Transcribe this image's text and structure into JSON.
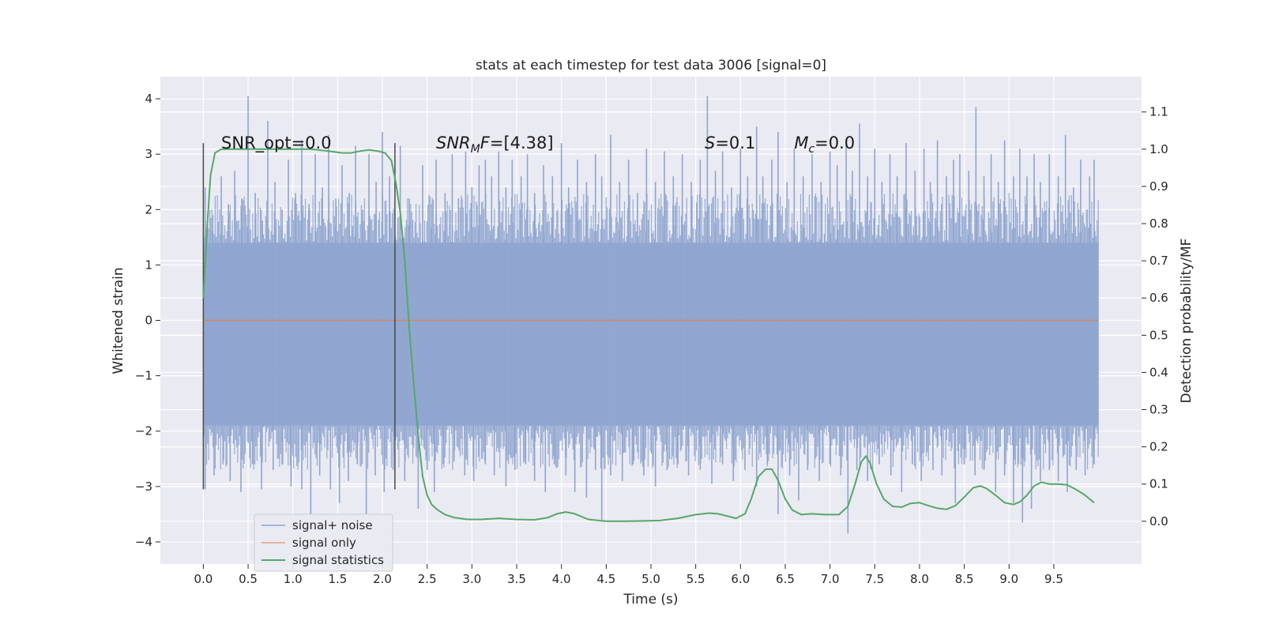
{
  "chart_data": {
    "type": "line",
    "title": "stats at each timestep for test data 3006 [signal=0]",
    "xlabel": "Time (s)",
    "ylabel": "Whitened strain",
    "y2label": "Detection probability/MF",
    "xlim": [
      -0.48,
      10.48
    ],
    "ylim": [
      -4.4,
      4.4
    ],
    "y2lim": [
      -0.115,
      1.195
    ],
    "xticks": [
      0.0,
      0.5,
      1.0,
      1.5,
      2.0,
      2.5,
      3.0,
      3.5,
      4.0,
      4.5,
      5.0,
      5.5,
      6.0,
      6.5,
      7.0,
      7.5,
      8.0,
      8.5,
      9.0,
      9.5
    ],
    "xtick_labels": [
      "0.0",
      "0.5",
      "1.0",
      "1.5",
      "2.0",
      "2.5",
      "3.0",
      "3.5",
      "4.0",
      "4.5",
      "5.0",
      "5.5",
      "6.0",
      "6.5",
      "7.0",
      "7.5",
      "8.0",
      "8.5",
      "9.0",
      "9.5"
    ],
    "yticks": [
      -4,
      -3,
      -2,
      -1,
      0,
      1,
      2,
      3,
      4
    ],
    "ytick_labels": [
      "−4",
      "−3",
      "−2",
      "−1",
      "0",
      "1",
      "2",
      "3",
      "4"
    ],
    "y2ticks": [
      0.0,
      0.1,
      0.2,
      0.3,
      0.4,
      0.5,
      0.6,
      0.7,
      0.8,
      0.9,
      1.0,
      1.1
    ],
    "y2tick_labels": [
      "0.0",
      "0.1",
      "0.2",
      "0.3",
      "0.4",
      "0.5",
      "0.6",
      "0.7",
      "0.8",
      "0.9",
      "1.0",
      "1.1"
    ],
    "grid": true,
    "legend": {
      "placement": "lower-left",
      "entries": [
        "signal+ noise",
        "signal only",
        "signal statistics"
      ]
    },
    "annotations": [
      {
        "text": "SNR_opt=0.0",
        "x": 0.2,
        "y": 3.2
      },
      {
        "html_parts": [
          "SNR",
          "M",
          "F=[4.38]"
        ],
        "x": 2.6,
        "y": 3.2
      },
      {
        "html_parts": [
          "S",
          "=0.1"
        ],
        "x": 5.6,
        "y": 3.2
      },
      {
        "html_parts": [
          "M",
          "c",
          "=0.0"
        ],
        "x": 6.6,
        "y": 3.2
      }
    ],
    "vlines": [
      {
        "x": 0.0,
        "ymin": -3.05,
        "ymax": 3.2
      },
      {
        "x": 2.14,
        "ymin": -3.05,
        "ymax": 3.2
      }
    ],
    "series": [
      {
        "name": "signal+ noise",
        "color": "#8fa5cf",
        "x_range": [
          0.0,
          10.0
        ],
        "envelope": {
          "core_low": -1.9,
          "core_high": 1.4
        },
        "spikes_up": [
          [
            0.02,
            2.4
          ],
          [
            0.1,
            1.6
          ],
          [
            0.2,
            2.6
          ],
          [
            0.28,
            2.1
          ],
          [
            0.35,
            2.7
          ],
          [
            0.43,
            2.2
          ],
          [
            0.5,
            4.05
          ],
          [
            0.58,
            2.3
          ],
          [
            0.66,
            1.8
          ],
          [
            0.72,
            3.6
          ],
          [
            0.8,
            2.5
          ],
          [
            0.88,
            2.0
          ],
          [
            0.95,
            2.9
          ],
          [
            1.03,
            2.3
          ],
          [
            1.1,
            3.25
          ],
          [
            1.18,
            2.1
          ],
          [
            1.25,
            3.0
          ],
          [
            1.33,
            2.4
          ],
          [
            1.4,
            3.35
          ],
          [
            1.48,
            2.2
          ],
          [
            1.55,
            2.8
          ],
          [
            1.63,
            2.3
          ],
          [
            1.7,
            3.15
          ],
          [
            1.78,
            2.0
          ],
          [
            1.85,
            3.0
          ],
          [
            1.93,
            2.5
          ],
          [
            2.0,
            3.4
          ],
          [
            2.08,
            2.6
          ],
          [
            2.2,
            3.15
          ],
          [
            2.3,
            2.2
          ],
          [
            2.45,
            2.8
          ],
          [
            2.55,
            2.1
          ],
          [
            2.6,
            2.9
          ],
          [
            2.7,
            2.3
          ],
          [
            2.78,
            3.0
          ],
          [
            2.85,
            2.2
          ],
          [
            2.93,
            3.05
          ],
          [
            3.0,
            2.4
          ],
          [
            3.08,
            2.8
          ],
          [
            3.15,
            2.9
          ],
          [
            3.22,
            2.6
          ],
          [
            3.3,
            3.05
          ],
          [
            3.38,
            2.4
          ],
          [
            3.45,
            2.9
          ],
          [
            3.55,
            2.6
          ],
          [
            3.62,
            3.0
          ],
          [
            3.7,
            2.3
          ],
          [
            3.8,
            2.8
          ],
          [
            3.9,
            2.6
          ],
          [
            4.0,
            3.2
          ],
          [
            4.08,
            2.4
          ],
          [
            4.18,
            2.9
          ],
          [
            4.28,
            2.5
          ],
          [
            4.38,
            3.0
          ],
          [
            4.45,
            2.6
          ],
          [
            4.55,
            3.35
          ],
          [
            4.65,
            2.5
          ],
          [
            4.75,
            2.9
          ],
          [
            4.85,
            2.3
          ],
          [
            4.95,
            3.1
          ],
          [
            5.05,
            2.5
          ],
          [
            5.15,
            3.05
          ],
          [
            5.25,
            2.6
          ],
          [
            5.35,
            3.0
          ],
          [
            5.45,
            2.5
          ],
          [
            5.55,
            2.9
          ],
          [
            5.63,
            4.05
          ],
          [
            5.72,
            2.7
          ],
          [
            5.8,
            3.05
          ],
          [
            5.9,
            2.4
          ],
          [
            6.0,
            3.1
          ],
          [
            6.08,
            2.6
          ],
          [
            6.18,
            3.5
          ],
          [
            6.25,
            2.6
          ],
          [
            6.35,
            2.9
          ],
          [
            6.42,
            3.4
          ],
          [
            6.52,
            2.5
          ],
          [
            6.6,
            3.1
          ],
          [
            6.7,
            2.6
          ],
          [
            6.8,
            3.0
          ],
          [
            6.9,
            2.5
          ],
          [
            7.0,
            3.05
          ],
          [
            7.08,
            2.8
          ],
          [
            7.18,
            3.2
          ],
          [
            7.25,
            2.7
          ],
          [
            7.33,
            3.55
          ],
          [
            7.42,
            2.6
          ],
          [
            7.5,
            3.1
          ],
          [
            7.58,
            2.5
          ],
          [
            7.67,
            3.0
          ],
          [
            7.75,
            2.6
          ],
          [
            7.85,
            3.2
          ],
          [
            7.95,
            2.7
          ],
          [
            8.05,
            3.1
          ],
          [
            8.12,
            2.5
          ],
          [
            8.2,
            3.25
          ],
          [
            8.3,
            2.6
          ],
          [
            8.38,
            2.9
          ],
          [
            8.45,
            3.0
          ],
          [
            8.55,
            2.7
          ],
          [
            8.63,
            3.85
          ],
          [
            8.72,
            2.6
          ],
          [
            8.8,
            3.0
          ],
          [
            8.88,
            2.5
          ],
          [
            8.95,
            3.25
          ],
          [
            9.05,
            2.6
          ],
          [
            9.12,
            3.1
          ],
          [
            9.2,
            2.6
          ],
          [
            9.28,
            3.0
          ],
          [
            9.35,
            2.5
          ],
          [
            9.45,
            3.0
          ],
          [
            9.55,
            2.6
          ],
          [
            9.63,
            3.35
          ],
          [
            9.72,
            2.4
          ],
          [
            9.8,
            2.9
          ],
          [
            9.9,
            2.6
          ],
          [
            9.95,
            2.9
          ]
        ],
        "spikes_down": [
          [
            0.02,
            -3.05
          ],
          [
            0.12,
            -2.8
          ],
          [
            0.22,
            -2.6
          ],
          [
            0.3,
            -2.9
          ],
          [
            0.42,
            -3.1
          ],
          [
            0.55,
            -2.6
          ],
          [
            0.65,
            -3.05
          ],
          [
            0.78,
            -2.7
          ],
          [
            0.88,
            -2.6
          ],
          [
            0.98,
            -3.0
          ],
          [
            1.1,
            -3.05
          ],
          [
            1.2,
            -3.5
          ],
          [
            1.3,
            -2.8
          ],
          [
            1.42,
            -3.05
          ],
          [
            1.52,
            -3.3
          ],
          [
            1.62,
            -2.9
          ],
          [
            1.72,
            -2.6
          ],
          [
            1.82,
            -3.5
          ],
          [
            1.92,
            -2.8
          ],
          [
            2.02,
            -3.1
          ],
          [
            2.12,
            -2.7
          ],
          [
            2.25,
            -2.9
          ],
          [
            2.4,
            -3.4
          ],
          [
            2.5,
            -2.7
          ],
          [
            2.58,
            -3.1
          ],
          [
            2.68,
            -2.6
          ],
          [
            2.8,
            -2.55
          ],
          [
            2.92,
            -2.8
          ],
          [
            3.02,
            -2.9
          ],
          [
            3.15,
            -2.6
          ],
          [
            3.25,
            -2.8
          ],
          [
            3.38,
            -3.0
          ],
          [
            3.48,
            -2.7
          ],
          [
            3.6,
            -2.6
          ],
          [
            3.7,
            -2.9
          ],
          [
            3.82,
            -3.1
          ],
          [
            3.92,
            -2.6
          ],
          [
            4.05,
            -2.8
          ],
          [
            4.15,
            -3.1
          ],
          [
            4.28,
            -3.2
          ],
          [
            4.38,
            -2.7
          ],
          [
            4.45,
            -3.6
          ],
          [
            4.55,
            -2.8
          ],
          [
            4.68,
            -2.9
          ],
          [
            4.8,
            -2.6
          ],
          [
            4.92,
            -2.8
          ],
          [
            5.05,
            -3.0
          ],
          [
            5.18,
            -2.7
          ],
          [
            5.3,
            -2.6
          ],
          [
            5.42,
            -2.8
          ],
          [
            5.55,
            -2.7
          ],
          [
            5.68,
            -2.95
          ],
          [
            5.8,
            -2.6
          ],
          [
            5.92,
            -2.9
          ],
          [
            6.05,
            -2.7
          ],
          [
            6.18,
            -3.0
          ],
          [
            6.3,
            -2.6
          ],
          [
            6.42,
            -3.5
          ],
          [
            6.55,
            -2.8
          ],
          [
            6.65,
            -3.25
          ],
          [
            6.75,
            -2.7
          ],
          [
            6.88,
            -2.9
          ],
          [
            7.0,
            -2.6
          ],
          [
            7.12,
            -2.8
          ],
          [
            7.2,
            -3.85
          ],
          [
            7.3,
            -2.7
          ],
          [
            7.42,
            -2.9
          ],
          [
            7.55,
            -2.6
          ],
          [
            7.68,
            -2.8
          ],
          [
            7.8,
            -3.1
          ],
          [
            7.92,
            -2.6
          ],
          [
            8.02,
            -2.9
          ],
          [
            8.15,
            -2.7
          ],
          [
            8.25,
            -2.8
          ],
          [
            8.4,
            -3.3
          ],
          [
            8.5,
            -2.6
          ],
          [
            8.62,
            -2.8
          ],
          [
            8.72,
            -2.7
          ],
          [
            8.85,
            -3.1
          ],
          [
            8.95,
            -2.8
          ],
          [
            9.05,
            -3.3
          ],
          [
            9.15,
            -3.65
          ],
          [
            9.25,
            -3.4
          ],
          [
            9.35,
            -2.9
          ],
          [
            9.45,
            -2.7
          ],
          [
            9.55,
            -2.9
          ],
          [
            9.65,
            -3.1
          ],
          [
            9.75,
            -2.7
          ],
          [
            9.85,
            -2.8
          ],
          [
            9.95,
            -2.6
          ]
        ]
      },
      {
        "name": "signal only",
        "color": "#dd8452",
        "x": [
          0.0,
          10.0
        ],
        "y": [
          0.0,
          0.0
        ]
      },
      {
        "name": "signal statistics",
        "color": "#55a868",
        "axis": "y2",
        "x": [
          0.0,
          0.04,
          0.08,
          0.13,
          0.2,
          0.3,
          0.45,
          0.6,
          0.8,
          1.0,
          1.2,
          1.4,
          1.55,
          1.65,
          1.75,
          1.85,
          1.95,
          2.03,
          2.1,
          2.15,
          2.2,
          2.25,
          2.3,
          2.35,
          2.4,
          2.45,
          2.5,
          2.55,
          2.62,
          2.7,
          2.8,
          2.95,
          3.1,
          3.3,
          3.5,
          3.7,
          3.85,
          3.95,
          4.05,
          4.15,
          4.3,
          4.5,
          4.7,
          4.9,
          5.1,
          5.3,
          5.5,
          5.65,
          5.75,
          5.85,
          5.95,
          6.05,
          6.12,
          6.2,
          6.28,
          6.35,
          6.42,
          6.5,
          6.58,
          6.68,
          6.8,
          6.95,
          7.1,
          7.2,
          7.28,
          7.35,
          7.4,
          7.45,
          7.52,
          7.6,
          7.7,
          7.8,
          7.9,
          8.0,
          8.1,
          8.2,
          8.3,
          8.4,
          8.5,
          8.6,
          8.68,
          8.75,
          8.85,
          8.95,
          9.05,
          9.12,
          9.2,
          9.28,
          9.36,
          9.45,
          9.55,
          9.65,
          9.75,
          9.85,
          9.95
        ],
        "y": [
          0.6,
          0.78,
          0.93,
          0.99,
          1.0,
          1.0,
          1.0,
          1.0,
          1.0,
          1.0,
          1.0,
          0.995,
          0.99,
          0.99,
          0.995,
          0.998,
          0.995,
          0.99,
          0.97,
          0.91,
          0.83,
          0.7,
          0.52,
          0.37,
          0.23,
          0.12,
          0.07,
          0.045,
          0.03,
          0.018,
          0.01,
          0.005,
          0.005,
          0.008,
          0.005,
          0.004,
          0.01,
          0.02,
          0.025,
          0.02,
          0.005,
          0.0,
          0.0,
          0.001,
          0.002,
          0.008,
          0.018,
          0.022,
          0.02,
          0.014,
          0.008,
          0.02,
          0.06,
          0.12,
          0.14,
          0.14,
          0.11,
          0.06,
          0.03,
          0.018,
          0.02,
          0.018,
          0.018,
          0.04,
          0.1,
          0.16,
          0.175,
          0.155,
          0.1,
          0.06,
          0.04,
          0.038,
          0.048,
          0.05,
          0.042,
          0.035,
          0.032,
          0.042,
          0.065,
          0.09,
          0.095,
          0.088,
          0.07,
          0.05,
          0.045,
          0.052,
          0.07,
          0.095,
          0.105,
          0.1,
          0.1,
          0.098,
          0.085,
          0.07,
          0.05
        ]
      }
    ]
  }
}
